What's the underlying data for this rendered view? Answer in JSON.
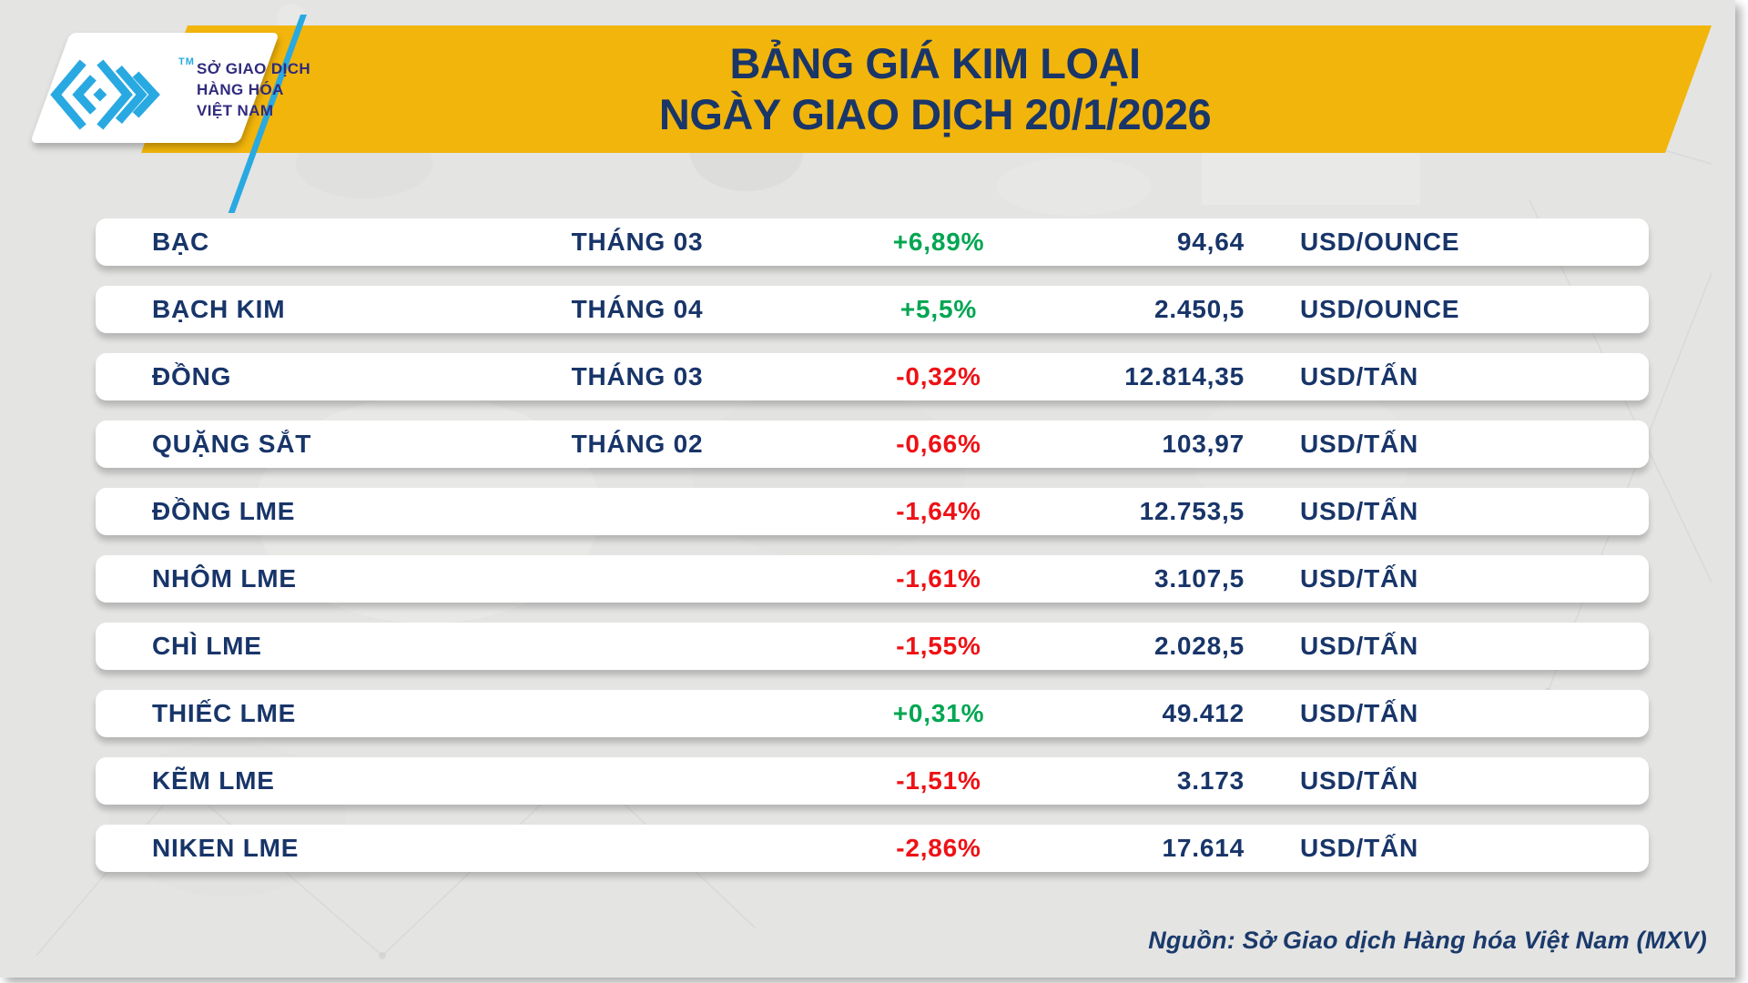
{
  "brand": {
    "org_name_lines": [
      "SỞ GIAO DỊCH",
      "HÀNG HÓA",
      "VIỆT NAM"
    ],
    "trademark": "TM"
  },
  "banner": {
    "title_line1": "BẢNG GIÁ KIM LOẠI",
    "title_line2": "NGÀY GIAO DỊCH 20/1/2026"
  },
  "footer": {
    "source": "Nguồn: Sở Giao dịch Hàng hóa Việt Nam (MXV)"
  },
  "colors": {
    "banner_yellow": "#f2b50b",
    "text_navy": "#183569",
    "up_green": "#00a651",
    "down_red": "#ee1115",
    "logo_cyan": "#29a9e1",
    "logo_indigo": "#302b7d",
    "background_gray": "#e4e4e3"
  },
  "chart_data": {
    "type": "table",
    "title": "BẢNG GIÁ KIM LOẠI",
    "subtitle": "NGÀY GIAO DỊCH 20/1/2026",
    "columns": [
      "commodity",
      "contract_month",
      "change_percent",
      "price",
      "unit"
    ],
    "rows": [
      {
        "name": "BẠC",
        "month": "THÁNG 03",
        "change": "+6,89%",
        "trend": "up",
        "price": "94,64",
        "unit": "USD/OUNCE"
      },
      {
        "name": "BẠCH KIM",
        "month": "THÁNG 04",
        "change": "+5,5%",
        "trend": "up",
        "price": "2.450,5",
        "unit": "USD/OUNCE"
      },
      {
        "name": "ĐỒNG",
        "month": "THÁNG 03",
        "change": "-0,32%",
        "trend": "down",
        "price": "12.814,35",
        "unit": "USD/TẤN"
      },
      {
        "name": "QUẶNG SẮT",
        "month": "THÁNG 02",
        "change": "-0,66%",
        "trend": "down",
        "price": "103,97",
        "unit": "USD/TẤN"
      },
      {
        "name": "ĐỒNG LME",
        "month": "",
        "change": "-1,64%",
        "trend": "down",
        "price": "12.753,5",
        "unit": "USD/TẤN"
      },
      {
        "name": "NHÔM LME",
        "month": "",
        "change": "-1,61%",
        "trend": "down",
        "price": "3.107,5",
        "unit": "USD/TẤN"
      },
      {
        "name": "CHÌ LME",
        "month": "",
        "change": "-1,55%",
        "trend": "down",
        "price": "2.028,5",
        "unit": "USD/TẤN"
      },
      {
        "name": "THIẾC LME",
        "month": "",
        "change": "+0,31%",
        "trend": "up",
        "price": "49.412",
        "unit": "USD/TẤN"
      },
      {
        "name": "KẼM LME",
        "month": "",
        "change": "-1,51%",
        "trend": "down",
        "price": "3.173",
        "unit": "USD/TẤN"
      },
      {
        "name": "NIKEN LME",
        "month": "",
        "change": "-2,86%",
        "trend": "down",
        "price": "17.614",
        "unit": "USD/TẤN"
      }
    ]
  }
}
